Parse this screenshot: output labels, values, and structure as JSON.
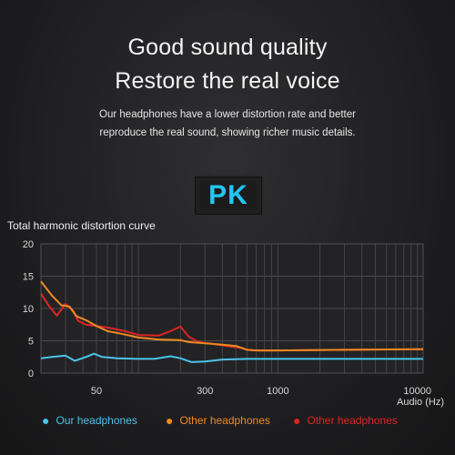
{
  "header": {
    "title_line1": "Good sound quality",
    "title_line2": "Restore the real voice",
    "desc_line1": "Our headphones have a lower distortion rate and better",
    "desc_line2": "reproduce the real sound, showing richer music details."
  },
  "badge": {
    "label": "PK",
    "color": "#21c7f2"
  },
  "chart_data": {
    "type": "line",
    "title": "Total harmonic distortion curve",
    "xlabel": "Audio (Hz)",
    "ylabel": "",
    "x_scale": "log",
    "xlim": [
      20,
      11000
    ],
    "ylim": [
      0,
      20
    ],
    "y_ticks": [
      0,
      5,
      10,
      15,
      20
    ],
    "x_tick_labels": [
      {
        "value": 50,
        "label": "50"
      },
      {
        "value": 300,
        "label": "300"
      },
      {
        "value": 1000,
        "label": "1000"
      },
      {
        "value": 10000,
        "label": "10000"
      }
    ],
    "grid": true,
    "legend_position": "bottom",
    "series": [
      {
        "name": "Our headphones",
        "color": "#4cc3ea",
        "points": [
          [
            20,
            2.3
          ],
          [
            24,
            2.5
          ],
          [
            30,
            2.7
          ],
          [
            35,
            1.9
          ],
          [
            42,
            2.5
          ],
          [
            48,
            3.0
          ],
          [
            55,
            2.5
          ],
          [
            70,
            2.3
          ],
          [
            100,
            2.2
          ],
          [
            130,
            2.2
          ],
          [
            170,
            2.6
          ],
          [
            200,
            2.3
          ],
          [
            240,
            1.7
          ],
          [
            300,
            1.8
          ],
          [
            400,
            2.1
          ],
          [
            600,
            2.2
          ],
          [
            1000,
            2.2
          ],
          [
            3000,
            2.2
          ],
          [
            10000,
            2.2
          ],
          [
            11000,
            2.2
          ]
        ]
      },
      {
        "name": "Other headphones",
        "color": "#f08a24",
        "points": [
          [
            20,
            14.2
          ],
          [
            24,
            12
          ],
          [
            28,
            10.5
          ],
          [
            32,
            10.3
          ],
          [
            36,
            8.8
          ],
          [
            42,
            8.2
          ],
          [
            50,
            7.3
          ],
          [
            60,
            6.5
          ],
          [
            75,
            6.1
          ],
          [
            100,
            5.5
          ],
          [
            140,
            5.2
          ],
          [
            200,
            5.1
          ],
          [
            230,
            4.8
          ],
          [
            300,
            4.6
          ],
          [
            400,
            4.4
          ],
          [
            500,
            4.2
          ],
          [
            550,
            3.9
          ],
          [
            600,
            3.6
          ],
          [
            700,
            3.5
          ],
          [
            1000,
            3.5
          ],
          [
            3000,
            3.6
          ],
          [
            10000,
            3.7
          ],
          [
            11000,
            3.7
          ]
        ]
      },
      {
        "name": "Other headphones",
        "color": "#e02424",
        "points": [
          [
            20,
            12.3
          ],
          [
            23,
            10.3
          ],
          [
            26,
            8.9
          ],
          [
            30,
            10.7
          ],
          [
            34,
            9.7
          ],
          [
            37,
            8.1
          ],
          [
            42,
            7.5
          ],
          [
            50,
            7.3
          ],
          [
            62,
            7.0
          ],
          [
            80,
            6.5
          ],
          [
            100,
            5.9
          ],
          [
            140,
            5.8
          ],
          [
            170,
            6.5
          ],
          [
            200,
            7.2
          ],
          [
            230,
            5.6
          ],
          [
            270,
            4.8
          ],
          [
            320,
            4.6
          ],
          [
            400,
            4.3
          ],
          [
            500,
            4.0
          ],
          [
            550,
            3.9
          ],
          [
            600,
            3.6
          ],
          [
            700,
            3.5
          ],
          [
            1000,
            3.5
          ],
          [
            3000,
            3.6
          ],
          [
            10000,
            3.7
          ],
          [
            11000,
            3.7
          ]
        ]
      }
    ]
  }
}
